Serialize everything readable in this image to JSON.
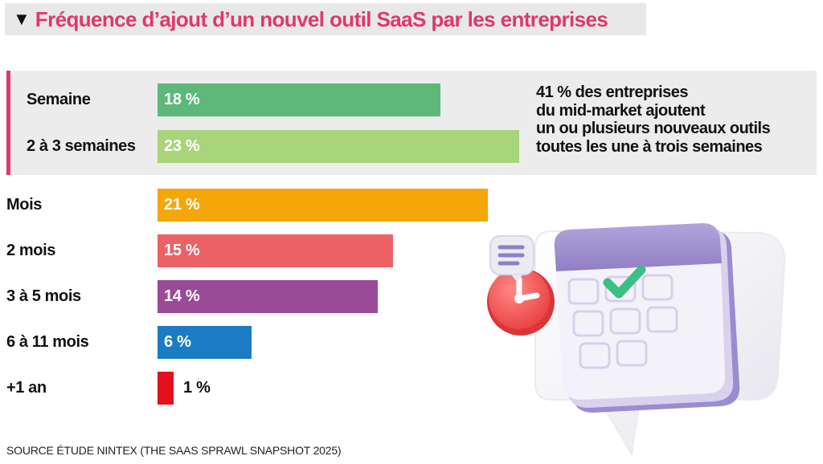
{
  "title": {
    "marker": "▼",
    "text": "Fréquence d’ajout d’un nouvel outil SaaS par les entreprises"
  },
  "note": {
    "lines": [
      "41 % des entreprises",
      "du mid-market ajoutent",
      "un ou plusieurs nouveaux outils",
      "toutes les une à trois semaines"
    ]
  },
  "source": "SOURCE ÉTUDE NINTEX (THE SAAS SPRAWL SNAPSHOT 2025)",
  "colors": {
    "title": "#e0386a",
    "highlight_band": "#ececed",
    "highlight_border": "#e0386a"
  },
  "illustration": {
    "icon": "calendar-clock-icon"
  },
  "chart_data": {
    "type": "bar",
    "orientation": "horizontal",
    "title": "Fréquence d’ajout d’un nouvel outil SaaS par les entreprises",
    "categories": [
      "Semaine",
      "2 à 3 semaines",
      "Mois",
      "2 mois",
      "3 à 5 mois",
      "6 à 11 mois",
      "+1 an"
    ],
    "values": [
      18,
      23,
      21,
      15,
      14,
      6,
      1
    ],
    "value_labels": [
      "18 %",
      "23 %",
      "21 %",
      "15 %",
      "14 %",
      "6 %",
      "1 %"
    ],
    "unit": "%",
    "colors": [
      "#5db87a",
      "#a8d47a",
      "#f5a609",
      "#ec6166",
      "#9a4a96",
      "#1b7cc4",
      "#e3101e"
    ],
    "highlighted_categories": [
      "Semaine",
      "2 à 3 semaines"
    ],
    "xlim": [
      0,
      23
    ],
    "grid": false,
    "legend": "none"
  }
}
